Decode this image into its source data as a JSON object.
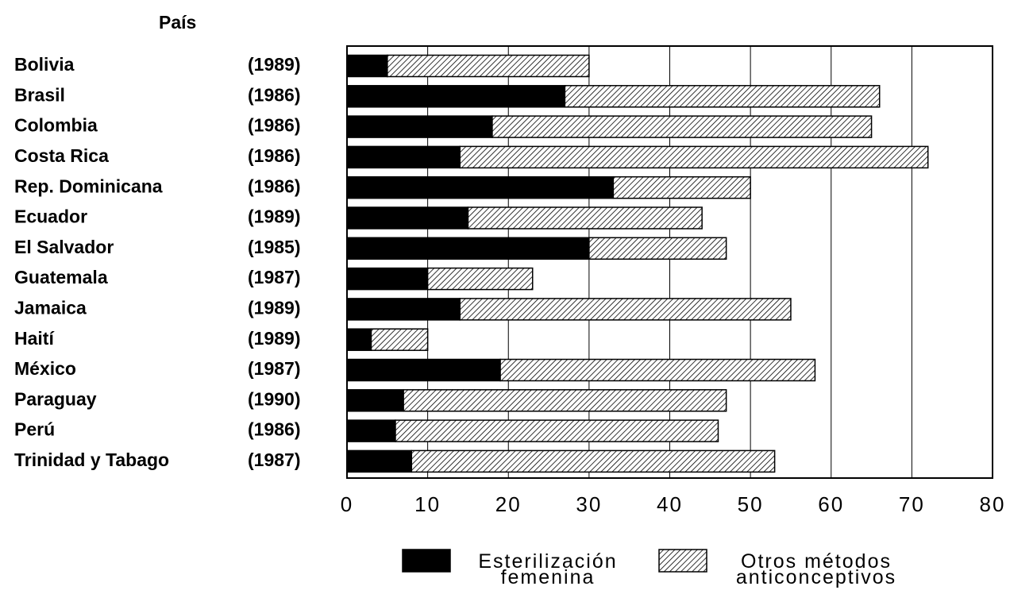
{
  "chart_data": {
    "type": "stacked-barh",
    "ylabel": "País",
    "categories": [
      "Bolivia",
      "Brasil",
      "Colombia",
      "Costa Rica",
      "Rep. Dominicana",
      "Ecuador",
      "El Salvador",
      "Guatemala",
      "Jamaica",
      "Haití",
      "México",
      "Paraguay",
      "Perú",
      "Trinidad y Tabago"
    ],
    "years": [
      "(1989)",
      "(1986)",
      "(1986)",
      "(1986)",
      "(1986)",
      "(1989)",
      "(1985)",
      "(1987)",
      "(1989)",
      "(1989)",
      "(1987)",
      "(1990)",
      "(1986)",
      "(1987)"
    ],
    "series": [
      {
        "name": "Esterilización femenina",
        "color": "#000000",
        "hatch": false,
        "values": [
          5,
          27,
          18,
          14,
          33,
          15,
          30,
          10,
          14,
          3,
          19,
          7,
          6,
          8
        ]
      },
      {
        "name": "Otros métodos anticonceptivos",
        "color": "#ffffff",
        "hatch": true,
        "values": [
          25,
          39,
          47,
          58,
          17,
          29,
          17,
          13,
          41,
          7,
          39,
          40,
          40,
          45
        ]
      }
    ],
    "xlim": [
      0,
      80
    ],
    "xticks": [
      0,
      10,
      20,
      30,
      40,
      50,
      60,
      70,
      80
    ],
    "grid": true
  }
}
